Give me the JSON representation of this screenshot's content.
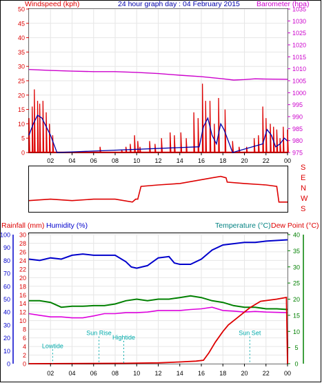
{
  "colors": {
    "wind": "#dd0000",
    "gust": "#0000aa",
    "baro": "#cc00cc",
    "dir": "#dd0000",
    "rain": "#dd0000",
    "humidity": "#0000cc",
    "temperature": "#008000",
    "dewpoint": "#dd00dd",
    "marker": "#00aaaa",
    "teal_title": "#008080"
  },
  "header": {
    "left": "Windspeed (kph)",
    "center": "24 hour graph day : 04 February 2015",
    "right": "Barometer (hpa)"
  },
  "bottom_header": {
    "rain": "Rainfall (mm)",
    "humidity": "Humidity (%)",
    "temperature": "Temperature (°C)",
    "dewpoint": "Dew Point (°C)"
  },
  "chart_data": [
    {
      "type": "line",
      "name": "wind-barometer",
      "x_labels": [
        "02",
        "04",
        "06",
        "08",
        "10",
        "12",
        "14",
        "16",
        "18",
        "20",
        "22",
        "00"
      ],
      "y_left_ticks": [
        0,
        5,
        10,
        15,
        20,
        25,
        30,
        35,
        40,
        45,
        50
      ],
      "y_right_ticks": [
        975,
        980,
        985,
        990,
        995,
        1000,
        1005,
        1010,
        1015,
        1020,
        1025,
        1030,
        1035
      ],
      "ylim_left": [
        0,
        50
      ],
      "ylim_right": [
        975,
        1035
      ],
      "windspeed_peaks": [
        [
          0.0,
          12
        ],
        [
          0.3,
          16
        ],
        [
          0.5,
          22
        ],
        [
          0.8,
          18
        ],
        [
          1.0,
          17
        ],
        [
          1.3,
          18
        ],
        [
          1.6,
          14
        ],
        [
          1.9,
          10
        ],
        [
          2.2,
          6
        ],
        [
          2.5,
          0
        ],
        [
          6.6,
          2
        ],
        [
          8.6,
          1
        ],
        [
          9.0,
          2
        ],
        [
          9.4,
          3
        ],
        [
          9.8,
          6
        ],
        [
          10.1,
          4
        ],
        [
          10.3,
          2
        ],
        [
          11.2,
          4
        ],
        [
          11.7,
          3
        ],
        [
          12.3,
          5
        ],
        [
          13.1,
          7
        ],
        [
          13.5,
          6
        ],
        [
          14.1,
          7
        ],
        [
          14.6,
          5
        ],
        [
          15.3,
          14
        ],
        [
          15.7,
          12
        ],
        [
          16.1,
          24
        ],
        [
          16.4,
          18
        ],
        [
          16.8,
          18
        ],
        [
          17.2,
          10
        ],
        [
          17.6,
          19
        ],
        [
          18.2,
          15
        ],
        [
          18.9,
          4
        ],
        [
          19.5,
          2
        ],
        [
          20.2,
          2
        ],
        [
          20.9,
          5
        ],
        [
          21.3,
          6
        ],
        [
          21.7,
          16
        ],
        [
          22.0,
          12
        ],
        [
          22.4,
          10
        ],
        [
          22.7,
          9
        ],
        [
          23.0,
          8
        ],
        [
          23.3,
          5
        ],
        [
          23.6,
          9
        ],
        [
          24.0,
          8
        ]
      ],
      "gust_line": [
        [
          0.0,
          6
        ],
        [
          0.4,
          10
        ],
        [
          0.8,
          13
        ],
        [
          1.2,
          12
        ],
        [
          1.6,
          9
        ],
        [
          2.0,
          6
        ],
        [
          2.4,
          2
        ],
        [
          2.6,
          0
        ],
        [
          15.8,
          2
        ],
        [
          16.2,
          9
        ],
        [
          16.6,
          12
        ],
        [
          17.0,
          6
        ],
        [
          17.4,
          3
        ],
        [
          17.8,
          10
        ],
        [
          18.1,
          8
        ],
        [
          18.5,
          4
        ],
        [
          18.9,
          0
        ],
        [
          21.7,
          3
        ],
        [
          22.1,
          8
        ],
        [
          22.5,
          6
        ],
        [
          22.9,
          2
        ],
        [
          23.3,
          3
        ],
        [
          23.7,
          5
        ],
        [
          24.0,
          4
        ]
      ],
      "barometer": [
        [
          0,
          1009.7
        ],
        [
          2,
          1009.3
        ],
        [
          4,
          1009.0
        ],
        [
          6,
          1008.8
        ],
        [
          8,
          1008.8
        ],
        [
          10,
          1008.5
        ],
        [
          12,
          1008.0
        ],
        [
          14,
          1007.3
        ],
        [
          16,
          1006.7
        ],
        [
          18,
          1005.8
        ],
        [
          19,
          1005.3
        ],
        [
          20,
          1005.5
        ],
        [
          21,
          1005.8
        ],
        [
          22,
          1005.7
        ],
        [
          24,
          1005.6
        ]
      ]
    },
    {
      "type": "line",
      "name": "wind-direction",
      "y_labels": [
        "S",
        "E",
        "N",
        "W",
        "S"
      ],
      "direction_index": [
        [
          0,
          0.25
        ],
        [
          2,
          0.3
        ],
        [
          4,
          0.25
        ],
        [
          6,
          0.3
        ],
        [
          8,
          0.3
        ],
        [
          9.6,
          0.2
        ],
        [
          9.9,
          0.3
        ],
        [
          10.1,
          0.3
        ],
        [
          10.4,
          0.75
        ],
        [
          12,
          0.8
        ],
        [
          14,
          0.85
        ],
        [
          15.5,
          0.95
        ],
        [
          17,
          1.05
        ],
        [
          17.8,
          1.1
        ],
        [
          18.3,
          1.05
        ],
        [
          18.4,
          0.9
        ],
        [
          20,
          0.85
        ],
        [
          22,
          0.8
        ],
        [
          23.0,
          0.75
        ],
        [
          23.2,
          0.2
        ],
        [
          24,
          0.2
        ]
      ]
    },
    {
      "type": "line",
      "name": "rain-humidity-temperature",
      "x_labels": [
        "02",
        "04",
        "06",
        "08",
        "10",
        "12",
        "14",
        "16",
        "18",
        "20",
        "22",
        "00"
      ],
      "rain_ticks": [
        0,
        2,
        4,
        6,
        8,
        10,
        12,
        14,
        16,
        18,
        20,
        22,
        24,
        26,
        28,
        30
      ],
      "humidity_ticks": [
        0,
        10,
        20,
        30,
        40,
        50,
        60,
        70,
        80,
        90,
        100
      ],
      "temperature_ticks": [
        0,
        5,
        10,
        15,
        20,
        25,
        30,
        35,
        40
      ],
      "ylim_rain": [
        0,
        30
      ],
      "ylim_humidity": [
        0,
        100
      ],
      "ylim_temperature": [
        0,
        40
      ],
      "rainfall": [
        [
          0,
          0
        ],
        [
          9,
          0.1
        ],
        [
          12,
          0.2
        ],
        [
          14,
          0.4
        ],
        [
          15.5,
          0.6
        ],
        [
          16.2,
          0.8
        ],
        [
          16.7,
          2.5
        ],
        [
          17.3,
          5
        ],
        [
          18,
          7.5
        ],
        [
          18.5,
          9
        ],
        [
          19.5,
          11
        ],
        [
          20.5,
          13
        ],
        [
          21.5,
          14.5
        ],
        [
          23,
          15
        ],
        [
          23.9,
          15.4
        ],
        [
          24,
          0
        ]
      ],
      "humidity": [
        [
          0,
          81
        ],
        [
          1,
          80
        ],
        [
          2,
          82
        ],
        [
          3,
          81
        ],
        [
          4,
          84
        ],
        [
          5,
          85
        ],
        [
          6,
          84
        ],
        [
          7,
          84
        ],
        [
          8,
          84
        ],
        [
          9,
          79
        ],
        [
          9.5,
          75
        ],
        [
          10,
          74
        ],
        [
          11,
          76
        ],
        [
          12,
          82
        ],
        [
          13,
          83
        ],
        [
          13.5,
          78
        ],
        [
          14,
          77
        ],
        [
          15,
          77
        ],
        [
          16,
          81
        ],
        [
          17,
          88
        ],
        [
          18,
          92
        ],
        [
          19,
          93
        ],
        [
          20,
          94
        ],
        [
          21,
          94
        ],
        [
          22,
          95
        ],
        [
          24,
          96
        ]
      ],
      "temperature": [
        [
          0,
          19.5
        ],
        [
          1,
          19.5
        ],
        [
          2,
          19
        ],
        [
          3,
          17.5
        ],
        [
          4,
          17.8
        ],
        [
          5,
          17.8
        ],
        [
          6,
          18
        ],
        [
          7,
          18
        ],
        [
          8,
          18.5
        ],
        [
          9,
          19.5
        ],
        [
          10,
          20
        ],
        [
          11,
          19.5
        ],
        [
          12,
          20
        ],
        [
          13,
          20
        ],
        [
          14,
          20.5
        ],
        [
          15,
          21
        ],
        [
          16,
          20.5
        ],
        [
          17,
          19.5
        ],
        [
          18,
          19
        ],
        [
          19,
          18
        ],
        [
          20,
          17.5
        ],
        [
          21,
          17.5
        ],
        [
          22,
          17
        ],
        [
          23,
          17
        ],
        [
          24,
          16.8
        ]
      ],
      "dewpoint": [
        [
          0,
          15.5
        ],
        [
          1,
          15
        ],
        [
          2,
          14.5
        ],
        [
          3,
          14.5
        ],
        [
          4,
          14.2
        ],
        [
          5,
          14.2
        ],
        [
          6,
          14.8
        ],
        [
          7,
          15.5
        ],
        [
          8,
          15.5
        ],
        [
          9,
          15.8
        ],
        [
          10,
          15.8
        ],
        [
          11,
          16
        ],
        [
          12,
          16.5
        ],
        [
          13,
          16.5
        ],
        [
          14,
          16.5
        ],
        [
          15,
          16.8
        ],
        [
          16,
          17
        ],
        [
          17,
          17.5
        ],
        [
          18,
          16.5
        ],
        [
          19,
          16.3
        ],
        [
          20,
          16
        ],
        [
          21,
          16.2
        ],
        [
          22,
          16
        ],
        [
          24,
          15.8
        ]
      ],
      "events": [
        {
          "label": "Lowtide",
          "hour": 2.2,
          "level": 3
        },
        {
          "label": "Sun Rise",
          "hour": 6.5,
          "level": 6
        },
        {
          "label": "Hightide",
          "hour": 8.8,
          "level": 5
        },
        {
          "label": "Sun Set",
          "hour": 20.5,
          "level": 6
        }
      ]
    }
  ]
}
